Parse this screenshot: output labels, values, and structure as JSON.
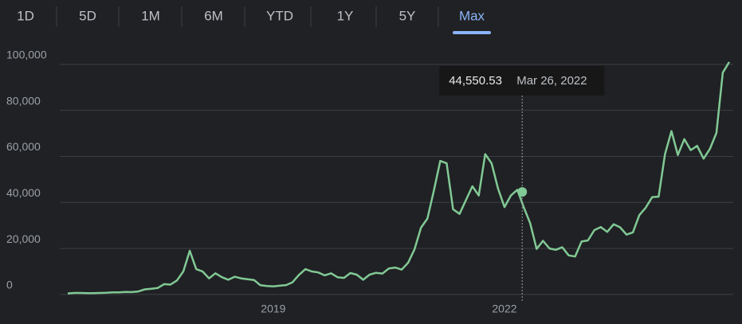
{
  "ranges": [
    {
      "label": "1D",
      "selected": false
    },
    {
      "label": "5D",
      "selected": false
    },
    {
      "label": "1M",
      "selected": false
    },
    {
      "label": "6M",
      "selected": false
    },
    {
      "label": "YTD",
      "selected": false
    },
    {
      "label": "1Y",
      "selected": false
    },
    {
      "label": "5Y",
      "selected": false
    },
    {
      "label": "Max",
      "selected": true
    }
  ],
  "chart_data": {
    "type": "line",
    "categories": [
      null,
      null,
      null,
      null,
      null,
      null,
      null,
      null,
      null,
      null,
      null,
      null,
      null,
      null,
      null,
      null,
      null,
      null,
      null,
      null,
      null,
      null,
      null,
      null,
      null,
      null,
      null,
      null,
      null,
      null,
      null,
      null,
      "2019",
      null,
      null,
      null,
      null,
      null,
      null,
      null,
      null,
      null,
      null,
      null,
      null,
      null,
      null,
      null,
      null,
      null,
      null,
      null,
      null,
      null,
      null,
      null,
      null,
      null,
      null,
      null,
      null,
      null,
      null,
      null,
      null,
      null,
      null,
      null,
      "2022",
      null,
      null,
      null,
      null,
      null,
      null,
      null,
      null,
      null,
      null,
      null,
      null,
      null,
      null,
      null,
      null,
      null,
      null,
      null,
      null,
      null,
      null,
      null,
      null,
      null,
      null,
      null,
      null,
      null,
      null,
      null,
      null,
      null,
      null,
      null
    ],
    "series": [
      {
        "color": "#81c995",
        "values": [
          450,
          650,
          650,
          580,
          600,
          650,
          720,
          900,
          950,
          1100,
          1050,
          1300,
          2200,
          2500,
          2800,
          4500,
          4300,
          6100,
          10000,
          19000,
          11000,
          10000,
          7000,
          9200,
          7500,
          6400,
          7700,
          7000,
          6600,
          6300,
          4000,
          3700,
          3500,
          3800,
          4100,
          5300,
          8500,
          11000,
          10000,
          9600,
          8300,
          9200,
          7500,
          7200,
          9300,
          8600,
          6400,
          8600,
          9400,
          9100,
          11300,
          11700,
          10800,
          13800,
          19600,
          29000,
          33000,
          45000,
          58000,
          57000,
          37000,
          35000,
          41000,
          47000,
          43000,
          61000,
          57000,
          46000,
          38000,
          43000,
          45500,
          38000,
          31000,
          19800,
          23300,
          20000,
          19400,
          20500,
          17000,
          16500,
          23000,
          23500,
          28000,
          29300,
          27200,
          30500,
          29200,
          26000,
          27000,
          34500,
          37700,
          42300,
          42500,
          61000,
          71000,
          60600,
          67500,
          62700,
          64600,
          59000,
          63300,
          70200,
          96400,
          101000
        ]
      }
    ],
    "ylim": [
      -2800,
      107200
    ],
    "yticks": [
      0,
      {
        "value": 20000,
        "label": "20,000"
      },
      {
        "value": 40000,
        "label": "40,000"
      },
      {
        "value": 60000,
        "label": "60,000"
      },
      {
        "value": 80000,
        "label": "80,000"
      },
      {
        "value": 100000,
        "label": "100,000"
      }
    ],
    "grid": true,
    "tooltip": {
      "value": 44550.53,
      "value_label": "44,550.53",
      "date": "Mar 26, 2022"
    }
  }
}
